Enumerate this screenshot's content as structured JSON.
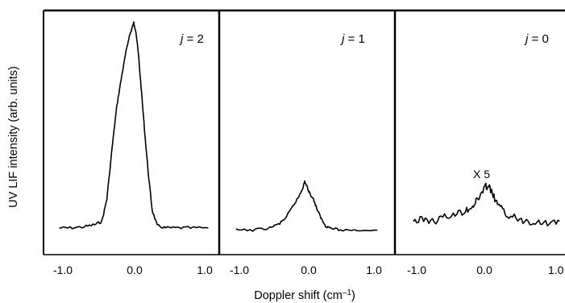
{
  "chart_data": {
    "type": "line",
    "ylabel": "UV LIF intensity (arb. units)",
    "xlabel": "Doppler shift (cm",
    "xlabel_sup": "–1",
    "xlabel_close": ")",
    "xlim": [
      -1.25,
      1.25
    ],
    "ylim": [
      0,
      1.0
    ],
    "grid": false,
    "panels": [
      {
        "label_var": "j",
        "label_rest": " = 2",
        "tick_labels": [
          "-1.0",
          "0.0",
          "1.0"
        ],
        "x": [
          -1.05,
          -0.9,
          -0.7,
          -0.55,
          -0.45,
          -0.38,
          -0.3,
          -0.24,
          -0.18,
          -0.12,
          -0.07,
          -0.03,
          0.0,
          0.03,
          0.07,
          0.11,
          0.16,
          0.21,
          0.26,
          0.33,
          0.45,
          0.6,
          0.8,
          1.05
        ],
        "y": [
          0.07,
          0.07,
          0.075,
          0.085,
          0.1,
          0.2,
          0.45,
          0.62,
          0.74,
          0.85,
          0.93,
          0.97,
          1.0,
          0.96,
          0.84,
          0.68,
          0.48,
          0.3,
          0.15,
          0.08,
          0.07,
          0.07,
          0.07,
          0.07
        ]
      },
      {
        "label_var": "j",
        "label_rest": " = 1",
        "tick_labels": [
          "-1.0",
          "0.0",
          "1.0"
        ],
        "x": [
          -1.05,
          -0.8,
          -0.55,
          -0.4,
          -0.3,
          -0.2,
          -0.12,
          -0.06,
          -0.03,
          0.0,
          0.04,
          0.1,
          0.16,
          0.22,
          0.28,
          0.35,
          0.5,
          0.75,
          1.05
        ],
        "y": [
          0.06,
          0.06,
          0.07,
          0.09,
          0.12,
          0.17,
          0.21,
          0.25,
          0.28,
          0.26,
          0.23,
          0.2,
          0.15,
          0.11,
          0.08,
          0.07,
          0.06,
          0.06,
          0.06
        ]
      },
      {
        "label_var": "j",
        "label_rest": " = 0",
        "annotation": "X 5",
        "tick_labels": [
          "-1.0",
          "0.0",
          "1.0"
        ],
        "x": [
          -1.05,
          -0.9,
          -0.75,
          -0.6,
          -0.45,
          -0.3,
          -0.2,
          -0.12,
          -0.05,
          0.0,
          0.05,
          0.12,
          0.2,
          0.3,
          0.45,
          0.6,
          0.75,
          0.9,
          1.05
        ],
        "y": [
          0.1,
          0.11,
          0.1,
          0.12,
          0.13,
          0.15,
          0.17,
          0.2,
          0.24,
          0.26,
          0.25,
          0.2,
          0.16,
          0.13,
          0.11,
          0.1,
          0.1,
          0.09,
          0.1
        ]
      }
    ]
  }
}
